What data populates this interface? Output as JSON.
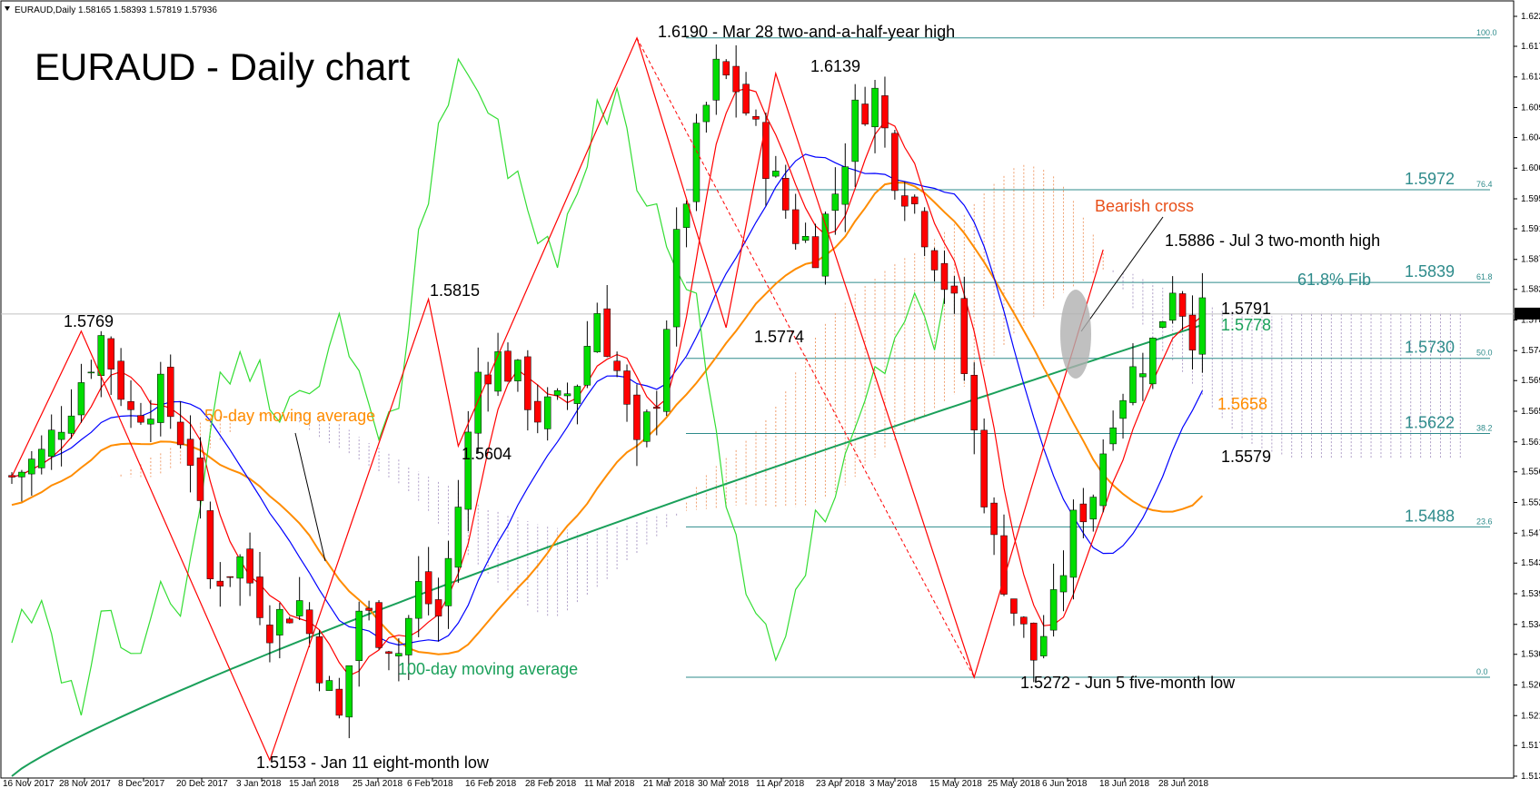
{
  "header": {
    "symbol_line": "EURAUD,Daily  1.58165 1.58393 1.57819 1.57936"
  },
  "chart_data": {
    "type": "candlestick",
    "title": "EURAUD - Daily chart",
    "ylim": [
      1.513,
      1.6221
    ],
    "y_ticks": [
      "1.62210",
      "1.61780",
      "1.61340",
      "1.60900",
      "1.60470",
      "1.60030",
      "1.59590",
      "1.59160",
      "1.58720",
      "1.58290",
      "1.57850",
      "1.57410",
      "1.56980",
      "1.56540",
      "1.56100",
      "1.55670",
      "1.55230",
      "1.54790",
      "1.54360",
      "1.53920",
      "1.53480",
      "1.53050",
      "1.52610",
      "1.52170",
      "1.51740",
      "1.51300"
    ],
    "x_ticks": [
      "16 Nov 2017",
      "28 Nov 2017",
      "8 Dec 2017",
      "20 Dec 2017",
      "3 Jan 2018",
      "15 Jan 2018",
      "25 Jan 2018",
      "6 Feb 2018",
      "16 Feb 2018",
      "28 Feb 2018",
      "11 Mar 2018",
      "21 Mar 2018",
      "30 Mar 2018",
      "11 Apr 2018",
      "23 Apr 2018",
      "3 May 2018",
      "15 May 2018",
      "25 May 2018",
      "6 Jun 2018",
      "18 Jun 2018",
      "28 Jun 2018"
    ],
    "current_price": "1.57936",
    "colors": {
      "bull": "#00dd00",
      "bear": "#ff0000",
      "ma50": "#ff8c00",
      "ma100": "#1aa05a",
      "kijun": "#0000ff",
      "tenkan": "#ff0000",
      "chikou": "#33dd33",
      "fib": "#2e8b8b",
      "cloud_orange": "#f0a070",
      "cloud_purple": "#b0a0c8"
    },
    "fib_levels": [
      {
        "pct": "100.0",
        "value": 1.619,
        "label": ""
      },
      {
        "pct": "76.4",
        "value": 1.5972,
        "label": "1.5972"
      },
      {
        "pct": "61.8",
        "value": 1.5839,
        "label": "1.5839"
      },
      {
        "pct": "50.0",
        "value": 1.573,
        "label": "1.5730"
      },
      {
        "pct": "38.2",
        "value": 1.5622,
        "label": "1.5622"
      },
      {
        "pct": "23.6",
        "value": 1.5488,
        "label": "1.5488"
      },
      {
        "pct": "0.0",
        "value": 1.5272,
        "label": ""
      }
    ],
    "annotations": {
      "high_mar28": "1.6190 - Mar 28 two-and-a-half-year high",
      "high_apr": "1.6139",
      "high_nov": "1.5769",
      "high_feb": "1.5815",
      "low_feb": "1.5604",
      "low_apr": "1.5774",
      "low_jan": "1.5153 - Jan 11 eight-month low",
      "low_jun": "1.5272 - Jun 5 five-month low",
      "high_jul": "1.5886 - Jul 3 two-month high",
      "last_close": "1.5791",
      "ma100_value": "1.5778",
      "ma50_value": "1.5658",
      "kijun_value": "1.5579",
      "fib_label": "61.8% Fib",
      "bearish_cross": "Bearish cross",
      "ma50_label": "50-day moving average",
      "ma100_label": "100-day moving average"
    },
    "close_path": [
      [
        0,
        1.556
      ],
      [
        3,
        1.559
      ],
      [
        6,
        1.567
      ],
      [
        9,
        1.576
      ],
      [
        12,
        1.565
      ],
      [
        15,
        1.568
      ],
      [
        18,
        1.559
      ],
      [
        20,
        1.541
      ],
      [
        23,
        1.544
      ],
      [
        26,
        1.535
      ],
      [
        29,
        1.538
      ],
      [
        31,
        1.529
      ],
      [
        33,
        1.521
      ],
      [
        35,
        1.537
      ],
      [
        37,
        1.534
      ],
      [
        39,
        1.531
      ],
      [
        41,
        1.54
      ],
      [
        43,
        1.536
      ],
      [
        45,
        1.552
      ],
      [
        47,
        1.571
      ],
      [
        49,
        1.573
      ],
      [
        51,
        1.57
      ],
      [
        53,
        1.565
      ],
      [
        55,
        1.566
      ],
      [
        57,
        1.57
      ],
      [
        59,
        1.58
      ],
      [
        61,
        1.571
      ],
      [
        63,
        1.559
      ],
      [
        65,
        1.568
      ],
      [
        67,
        1.589
      ],
      [
        69,
        1.604
      ],
      [
        71,
        1.614
      ],
      [
        73,
        1.612
      ],
      [
        75,
        1.605
      ],
      [
        77,
        1.598
      ],
      [
        79,
        1.591
      ],
      [
        81,
        1.589
      ],
      [
        83,
        1.597
      ],
      [
        85,
        1.608
      ],
      [
        87,
        1.611
      ],
      [
        89,
        1.6
      ],
      [
        91,
        1.595
      ],
      [
        93,
        1.588
      ],
      [
        95,
        1.58
      ],
      [
        97,
        1.562
      ],
      [
        99,
        1.546
      ],
      [
        101,
        1.537
      ],
      [
        103,
        1.53
      ],
      [
        105,
        1.537
      ],
      [
        107,
        1.549
      ],
      [
        109,
        1.554
      ],
      [
        111,
        1.566
      ],
      [
        113,
        1.571
      ],
      [
        115,
        1.575
      ],
      [
        117,
        1.584
      ],
      [
        119,
        1.577
      ],
      [
        120,
        1.579
      ]
    ]
  }
}
